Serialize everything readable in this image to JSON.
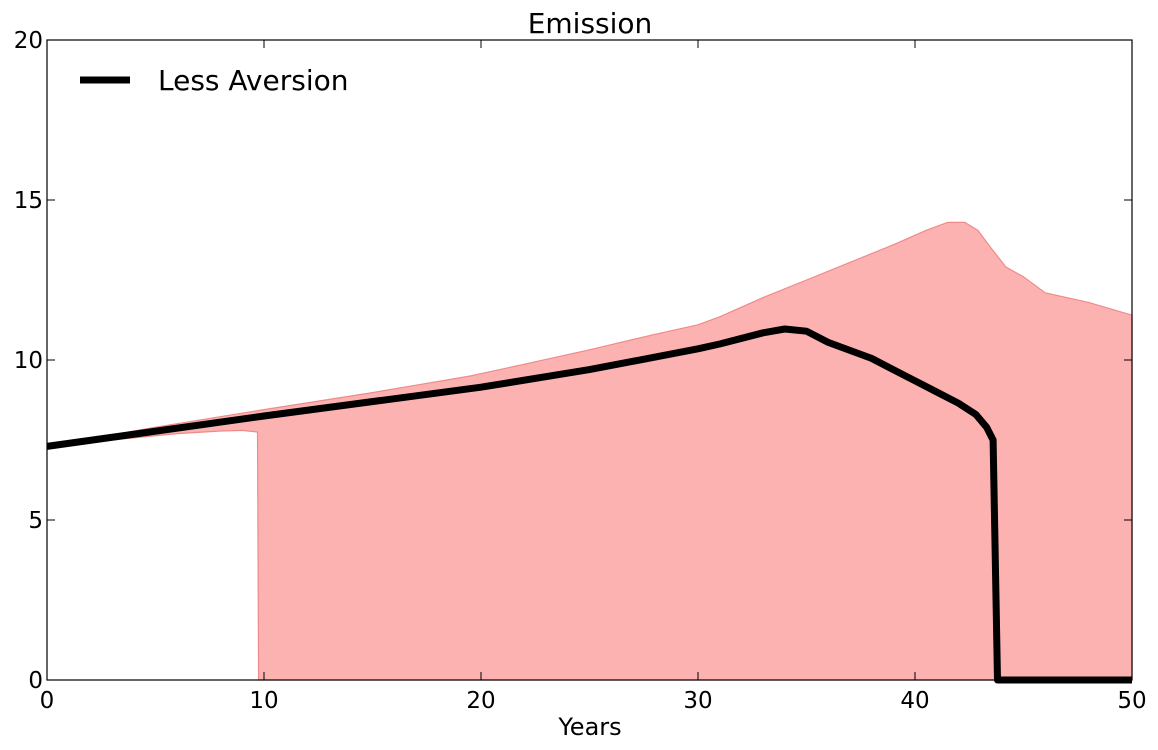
{
  "chart_data": {
    "type": "line",
    "title": "Emission",
    "xlabel": "Years",
    "ylabel": "",
    "xlim": [
      0,
      50
    ],
    "ylim": [
      0,
      20
    ],
    "xticks": [
      0,
      10,
      20,
      30,
      40,
      50
    ],
    "yticks": [
      0,
      5,
      10,
      15,
      20
    ],
    "grid": false,
    "legend_position": "top-left",
    "colors": {
      "band_fill": "#fdb2b2",
      "band_edge": "#f08a8a",
      "line": "#000000"
    },
    "band": {
      "upper": [
        [
          0,
          7.3
        ],
        [
          5,
          7.9
        ],
        [
          10,
          8.45
        ],
        [
          15,
          8.98
        ],
        [
          19.5,
          9.5
        ],
        [
          22,
          9.87
        ],
        [
          25,
          10.32
        ],
        [
          28,
          10.8
        ],
        [
          30,
          11.1
        ],
        [
          31,
          11.35
        ],
        [
          33,
          11.95
        ],
        [
          35,
          12.5
        ],
        [
          37,
          13.05
        ],
        [
          39,
          13.6
        ],
        [
          40.5,
          14.05
        ],
        [
          41.5,
          14.3
        ],
        [
          42.3,
          14.3
        ],
        [
          42.9,
          14.05
        ],
        [
          43.5,
          13.5
        ],
        [
          44.2,
          12.9
        ],
        [
          45,
          12.6
        ],
        [
          46,
          12.1
        ],
        [
          48,
          11.8
        ],
        [
          49,
          11.6
        ],
        [
          50,
          11.4
        ]
      ],
      "lower": [
        [
          0,
          7.3
        ],
        [
          3,
          7.5
        ],
        [
          6,
          7.7
        ],
        [
          8,
          7.78
        ],
        [
          9,
          7.8
        ],
        [
          9.7,
          7.75
        ],
        [
          9.75,
          0
        ],
        [
          50,
          0
        ]
      ]
    },
    "series": [
      {
        "name": "Less Aversion",
        "points": [
          [
            0,
            7.3
          ],
          [
            10,
            8.25
          ],
          [
            20,
            9.15
          ],
          [
            25,
            9.7
          ],
          [
            30,
            10.35
          ],
          [
            31,
            10.5
          ],
          [
            33,
            10.85
          ],
          [
            34,
            10.97
          ],
          [
            35,
            10.9
          ],
          [
            36,
            10.55
          ],
          [
            38,
            10.05
          ],
          [
            40,
            9.35
          ],
          [
            41,
            9.0
          ],
          [
            42,
            8.65
          ],
          [
            42.8,
            8.3
          ],
          [
            43.3,
            7.9
          ],
          [
            43.6,
            7.5
          ],
          [
            43.8,
            0
          ],
          [
            50,
            0
          ]
        ]
      }
    ]
  }
}
